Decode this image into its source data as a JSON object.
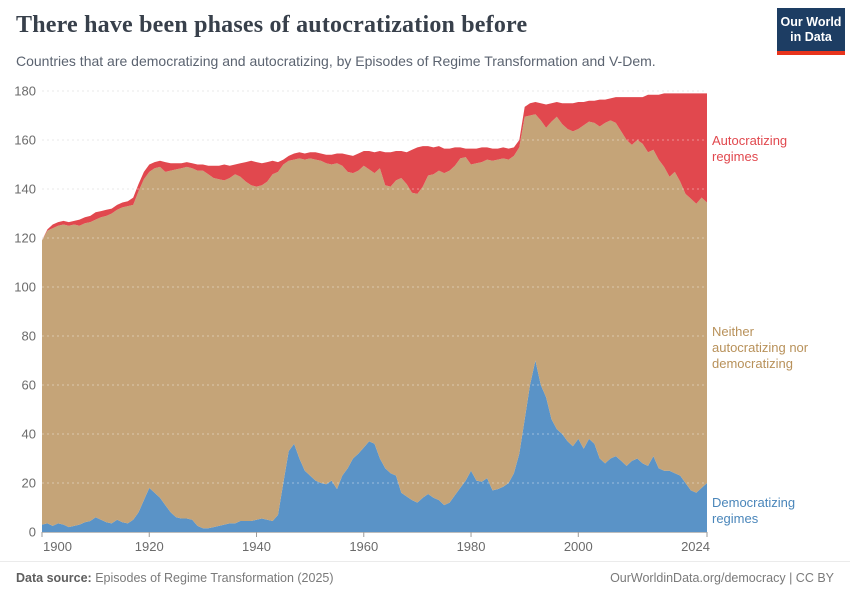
{
  "header": {
    "title": "There have been phases of autocratization before",
    "subtitle": "Countries that are democratizing and autocratizing, by Episodes of Regime Transformation and V-Dem."
  },
  "logo": {
    "line1": "Our World",
    "line2": "in Data"
  },
  "chart_data": {
    "type": "area",
    "stacked": true,
    "title": "There have been phases of autocratization before",
    "xlabel": "",
    "ylabel": "",
    "x_range": [
      1900,
      2024
    ],
    "ylim": [
      0,
      180
    ],
    "grid": true,
    "legend_position": "right",
    "y_ticks": [
      0,
      20,
      40,
      60,
      80,
      100,
      120,
      140,
      160,
      180
    ],
    "x_ticks": [
      1900,
      1920,
      1940,
      1960,
      1980,
      2000,
      2024
    ],
    "years": [
      1900,
      1901,
      1902,
      1903,
      1904,
      1905,
      1906,
      1907,
      1908,
      1909,
      1910,
      1911,
      1912,
      1913,
      1914,
      1915,
      1916,
      1917,
      1918,
      1919,
      1920,
      1921,
      1922,
      1923,
      1924,
      1925,
      1926,
      1927,
      1928,
      1929,
      1930,
      1931,
      1932,
      1933,
      1934,
      1935,
      1936,
      1937,
      1938,
      1939,
      1940,
      1941,
      1942,
      1943,
      1944,
      1945,
      1946,
      1947,
      1948,
      1949,
      1950,
      1951,
      1952,
      1953,
      1954,
      1955,
      1956,
      1957,
      1958,
      1959,
      1960,
      1961,
      1962,
      1963,
      1964,
      1965,
      1966,
      1967,
      1968,
      1969,
      1970,
      1971,
      1972,
      1973,
      1974,
      1975,
      1976,
      1977,
      1978,
      1979,
      1980,
      1981,
      1982,
      1983,
      1984,
      1985,
      1986,
      1987,
      1988,
      1989,
      1990,
      1991,
      1992,
      1993,
      1994,
      1995,
      1996,
      1997,
      1998,
      1999,
      2000,
      2001,
      2002,
      2003,
      2004,
      2005,
      2006,
      2007,
      2008,
      2009,
      2010,
      2011,
      2012,
      2013,
      2014,
      2015,
      2016,
      2017,
      2018,
      2019,
      2020,
      2021,
      2022,
      2023,
      2024
    ],
    "series": [
      {
        "id": "democratizing",
        "label": "Democratizing regimes",
        "color": "#5a93c7",
        "label_color": "#4a86ba",
        "values": [
          3,
          3.5,
          2.5,
          3.5,
          3,
          2,
          2.5,
          3,
          4,
          4.5,
          6,
          5,
          4,
          3.5,
          5,
          4,
          3.5,
          5,
          8,
          13,
          18,
          16,
          14,
          11,
          8,
          6,
          5.5,
          5.5,
          5,
          2.5,
          1.5,
          1.5,
          2,
          2.5,
          3,
          3.5,
          3.5,
          4.5,
          4.5,
          4.5,
          5,
          5.5,
          5,
          4.5,
          7,
          20,
          33,
          36,
          30,
          25,
          23,
          21,
          20,
          19.5,
          21,
          17.5,
          23,
          26,
          30,
          32,
          34.5,
          37,
          36,
          30,
          26,
          24,
          23,
          16,
          14.5,
          13,
          12,
          14,
          15.5,
          14,
          13,
          11,
          12,
          15,
          18,
          21,
          25,
          21,
          20.5,
          22,
          17,
          17.5,
          18.5,
          20,
          24,
          32,
          46,
          60,
          70,
          60,
          55,
          46,
          42,
          40,
          37,
          35,
          38,
          34,
          38,
          36,
          30,
          28,
          30,
          31,
          29,
          27,
          29,
          30,
          28,
          27,
          31,
          26,
          25,
          25,
          24,
          23,
          20,
          17,
          16,
          18,
          20
        ]
      },
      {
        "id": "neither",
        "label": "Neither autocratizing nor democratizing",
        "color": "#c5a478",
        "label_color": "#b8915a",
        "values": [
          116,
          119.5,
          121.5,
          121.5,
          122.5,
          123,
          123,
          122,
          122,
          122,
          121.5,
          123.5,
          125,
          126.5,
          126.5,
          128.5,
          129.5,
          128.5,
          131,
          131,
          129,
          132.5,
          135,
          136,
          139.5,
          142,
          143,
          143.5,
          143.5,
          145,
          146,
          144.5,
          142.5,
          141.5,
          140.5,
          141,
          142.5,
          140.5,
          138.5,
          137,
          136,
          136,
          138,
          141.5,
          140,
          130,
          118.5,
          116,
          122.5,
          127,
          129.5,
          131,
          131.5,
          131,
          129,
          133,
          126.5,
          121,
          116.5,
          115.5,
          115,
          111,
          110.5,
          118.5,
          115.5,
          117,
          120.5,
          128.5,
          127.5,
          125.5,
          126,
          127,
          130,
          132,
          134.5,
          135.5,
          135.5,
          134.5,
          134.5,
          132,
          125,
          129.5,
          130.5,
          130,
          134.5,
          134.5,
          134,
          132,
          129.5,
          125,
          123.5,
          110,
          100.5,
          108,
          110,
          121.5,
          127.5,
          126.5,
          127.5,
          128.5,
          126.5,
          132,
          129.5,
          131,
          135.5,
          139,
          138,
          136,
          134.5,
          133,
          129,
          130,
          130.5,
          128,
          125,
          126,
          124,
          120,
          123,
          120,
          118,
          119,
          118,
          118.5,
          114.5
        ]
      },
      {
        "id": "autocratizing",
        "label": "Autocratizing regimes",
        "color": "#e1484e",
        "label_color": "#e1484e",
        "values": [
          0,
          0.5,
          1.5,
          1.5,
          1.5,
          1.5,
          1.5,
          2.5,
          2.5,
          2.5,
          3,
          2.5,
          2.5,
          2,
          2,
          2,
          2,
          3,
          3,
          3,
          3,
          2.5,
          2.5,
          4,
          3,
          2.5,
          2,
          2,
          2,
          2.5,
          2.5,
          3.5,
          5,
          5.5,
          6.5,
          5,
          4,
          5.5,
          8,
          10,
          10,
          9,
          8,
          5.5,
          4,
          2,
          2,
          2.5,
          2.5,
          2.5,
          2.5,
          3,
          3,
          3.5,
          4,
          4,
          5,
          7,
          7,
          7,
          6,
          7.5,
          8.5,
          7,
          13.5,
          14,
          12,
          11,
          13,
          17.5,
          19,
          16.5,
          12,
          11,
          10,
          10,
          9,
          7.5,
          4.5,
          3.5,
          6.5,
          6,
          6,
          5,
          5,
          4.5,
          4.5,
          4.5,
          3.5,
          3,
          4,
          5,
          5,
          7,
          9.5,
          7.5,
          6,
          8.5,
          10.5,
          11.5,
          11,
          9.5,
          8.5,
          9,
          11,
          9.5,
          9,
          10.5,
          14,
          17.5,
          19.5,
          17.5,
          19,
          23.5,
          22.5,
          26.5,
          30,
          34,
          32,
          36,
          41,
          43,
          45,
          42.5,
          44.5
        ]
      }
    ]
  },
  "footer": {
    "source_label": "Data source:",
    "source_text": "Episodes of Regime Transformation (2025)",
    "credit": "OurWorldinData.org/democracy | CC BY"
  }
}
